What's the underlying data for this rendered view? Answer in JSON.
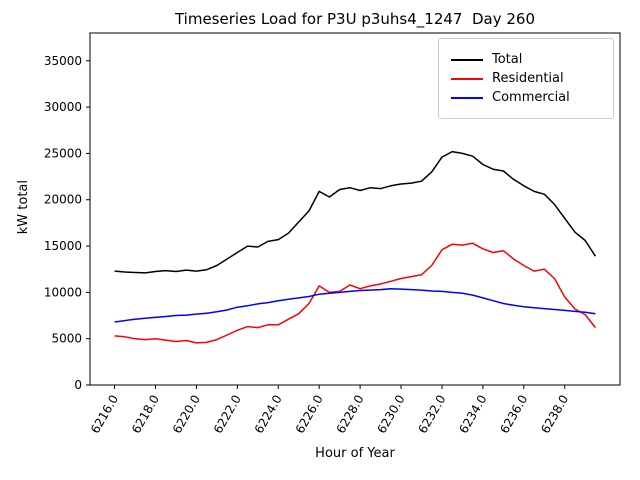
{
  "chart_data": {
    "type": "line",
    "title": "Timeseries Load for P3U p3uhs4_1247  Day 260",
    "xlabel": "Hour of Year",
    "ylabel": "kW total",
    "xlim": [
      6214.8,
      6240.7
    ],
    "ylim": [
      0,
      38000
    ],
    "grid": false,
    "legend_position": "upper right",
    "xtick_values": [
      6216,
      6218,
      6220,
      6222,
      6224,
      6226,
      6228,
      6230,
      6232,
      6234,
      6236,
      6238
    ],
    "xtick_labels": [
      "6216.0",
      "6218.0",
      "6220.0",
      "6222.0",
      "6224.0",
      "6226.0",
      "6228.0",
      "6230.0",
      "6232.0",
      "6234.0",
      "6236.0",
      "6238.0"
    ],
    "ytick_values": [
      0,
      5000,
      10000,
      15000,
      20000,
      25000,
      30000,
      35000
    ],
    "ytick_labels": [
      "0",
      "5000",
      "10000",
      "15000",
      "20000",
      "25000",
      "30000",
      "35000"
    ],
    "x": [
      6216.0,
      6216.5,
      6217.0,
      6217.5,
      6218.0,
      6218.5,
      6219.0,
      6219.5,
      6220.0,
      6220.5,
      6221.0,
      6221.5,
      6222.0,
      6222.5,
      6223.0,
      6223.5,
      6224.0,
      6224.5,
      6225.0,
      6225.5,
      6226.0,
      6226.5,
      6227.0,
      6227.5,
      6228.0,
      6228.5,
      6229.0,
      6229.5,
      6230.0,
      6230.5,
      6231.0,
      6231.5,
      6232.0,
      6232.5,
      6233.0,
      6233.5,
      6234.0,
      6234.5,
      6235.0,
      6235.5,
      6236.0,
      6236.5,
      6237.0,
      6237.5,
      6238.0,
      6238.5,
      6239.0,
      6239.5
    ],
    "series": [
      {
        "name": "Total",
        "color": "#000000",
        "values": [
          12300,
          12200,
          12150,
          12100,
          12250,
          12350,
          12250,
          12400,
          12300,
          12450,
          12900,
          13600,
          14300,
          15000,
          14900,
          15500,
          15700,
          16400,
          17600,
          18800,
          20900,
          20300,
          21100,
          21300,
          21000,
          21300,
          21200,
          21500,
          21700,
          21800,
          22000,
          23000,
          24600,
          25200,
          25000,
          24700,
          23800,
          23300,
          23100,
          22200,
          21500,
          20900,
          20600,
          19500,
          18000,
          16500,
          15600,
          13900
        ]
      },
      {
        "name": "Residential",
        "color": "#ff0000",
        "values": [
          5300,
          5200,
          5000,
          4900,
          5000,
          4850,
          4700,
          4800,
          4550,
          4600,
          4900,
          5400,
          5900,
          6300,
          6200,
          6500,
          6500,
          7100,
          7700,
          8800,
          10700,
          10000,
          10100,
          10800,
          10400,
          10700,
          10900,
          11200,
          11500,
          11700,
          11900,
          12900,
          14600,
          15200,
          15100,
          15300,
          14700,
          14300,
          14500,
          13600,
          12900,
          12300,
          12500,
          11500,
          9500,
          8200,
          7600,
          6200
        ]
      },
      {
        "name": "Commercial",
        "color": "#0000ff",
        "values": [
          6800,
          6950,
          7100,
          7200,
          7300,
          7400,
          7500,
          7550,
          7650,
          7750,
          7900,
          8100,
          8400,
          8550,
          8750,
          8900,
          9100,
          9250,
          9400,
          9550,
          9800,
          9900,
          10000,
          10100,
          10200,
          10250,
          10300,
          10400,
          10350,
          10300,
          10250,
          10150,
          10100,
          10000,
          9900,
          9700,
          9400,
          9100,
          8800,
          8600,
          8450,
          8350,
          8250,
          8150,
          8050,
          7950,
          7850,
          7700
        ]
      }
    ]
  }
}
